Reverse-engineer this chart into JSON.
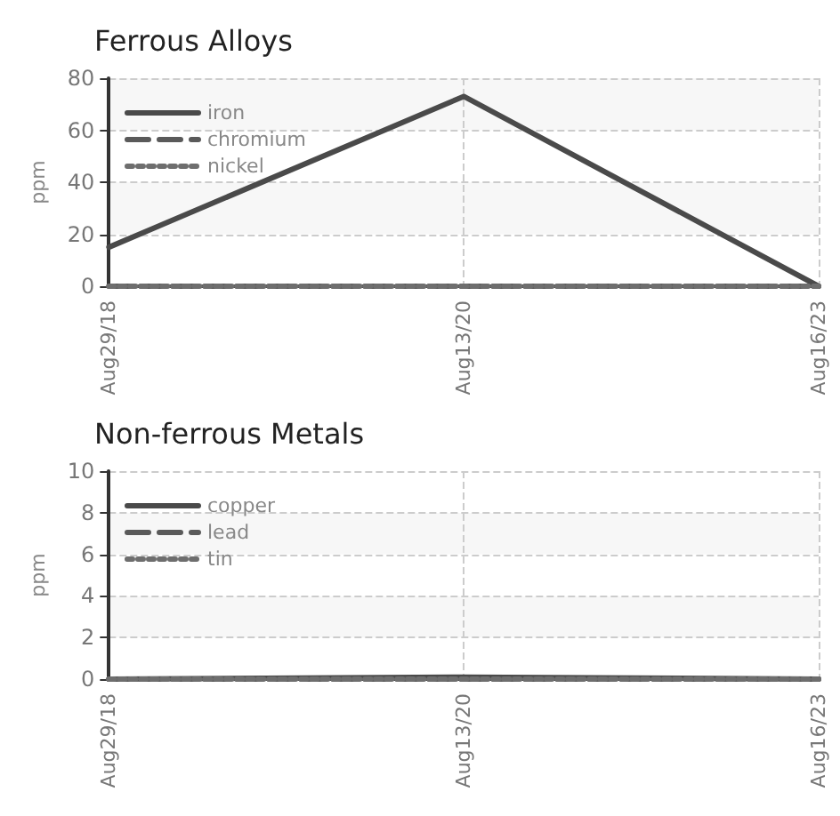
{
  "chart_data": [
    {
      "type": "line",
      "title": "Ferrous Alloys",
      "ylabel": "ppm",
      "categories": [
        "Aug29/18",
        "Aug13/20",
        "Aug16/23"
      ],
      "ylim": [
        0,
        80
      ],
      "yticks": [
        0,
        20,
        40,
        60,
        80
      ],
      "grid": true,
      "legend": "top left",
      "marker": "none",
      "series": [
        {
          "name": "iron",
          "color": "#4a4a4a",
          "line_style": "solid",
          "values": [
            15,
            73,
            0
          ]
        },
        {
          "name": "chromium",
          "color": "#5a5a5a",
          "line_style": "dashed",
          "values": [
            0,
            0,
            0
          ]
        },
        {
          "name": "nickel",
          "color": "#6e6e6e",
          "line_style": "dotted",
          "values": [
            0,
            0,
            0
          ]
        }
      ]
    },
    {
      "type": "line",
      "title": "Non-ferrous Metals",
      "ylabel": "ppm",
      "categories": [
        "Aug29/18",
        "Aug13/20",
        "Aug16/23"
      ],
      "ylim": [
        0,
        10
      ],
      "yticks": [
        0,
        2,
        4,
        6,
        8,
        10
      ],
      "grid": true,
      "legend": "top left",
      "marker": "none",
      "series": [
        {
          "name": "copper",
          "color": "#4a4a4a",
          "line_style": "solid",
          "values": [
            0,
            0.1,
            0
          ]
        },
        {
          "name": "lead",
          "color": "#5a5a5a",
          "line_style": "dashed",
          "values": [
            0,
            0,
            0
          ]
        },
        {
          "name": "tin",
          "color": "#6e6e6e",
          "line_style": "dotted",
          "values": [
            0,
            0,
            0
          ]
        }
      ]
    }
  ]
}
